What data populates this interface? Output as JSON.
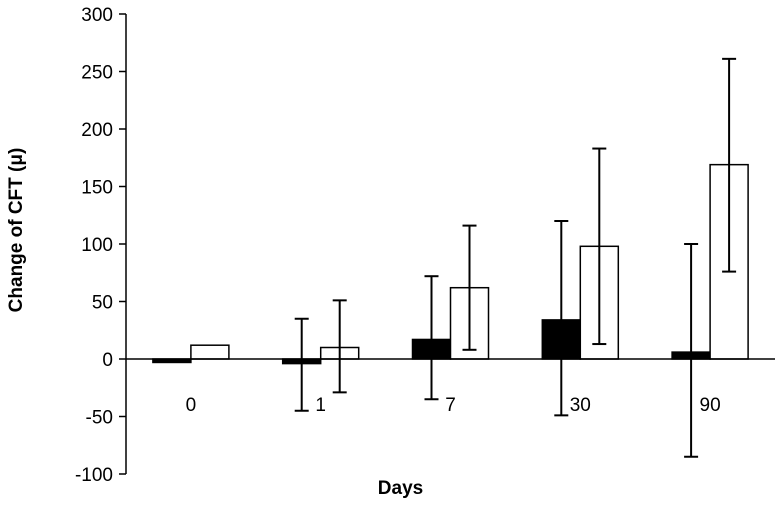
{
  "chart_data": {
    "type": "bar",
    "title": "",
    "xlabel": "Days",
    "ylabel": "Change of CFT (μ)",
    "categories": [
      "0",
      "1",
      "7",
      "30",
      "90"
    ],
    "ylim": [
      -100,
      300
    ],
    "yticks": [
      -100,
      -50,
      0,
      50,
      100,
      150,
      200,
      250,
      300
    ],
    "grid": false,
    "legend": "none",
    "series": [
      {
        "fill": "#000000",
        "values": [
          -3,
          -4,
          17,
          34,
          6
        ],
        "error_low": [
          null,
          -45,
          -35,
          -49,
          -85
        ],
        "error_high": [
          null,
          35,
          72,
          120,
          100
        ]
      },
      {
        "fill": "#ffffff",
        "values": [
          12,
          10,
          62,
          98,
          169
        ],
        "error_low": [
          null,
          -29,
          8,
          13,
          76
        ],
        "error_high": [
          null,
          51,
          116,
          183,
          261
        ]
      }
    ]
  }
}
